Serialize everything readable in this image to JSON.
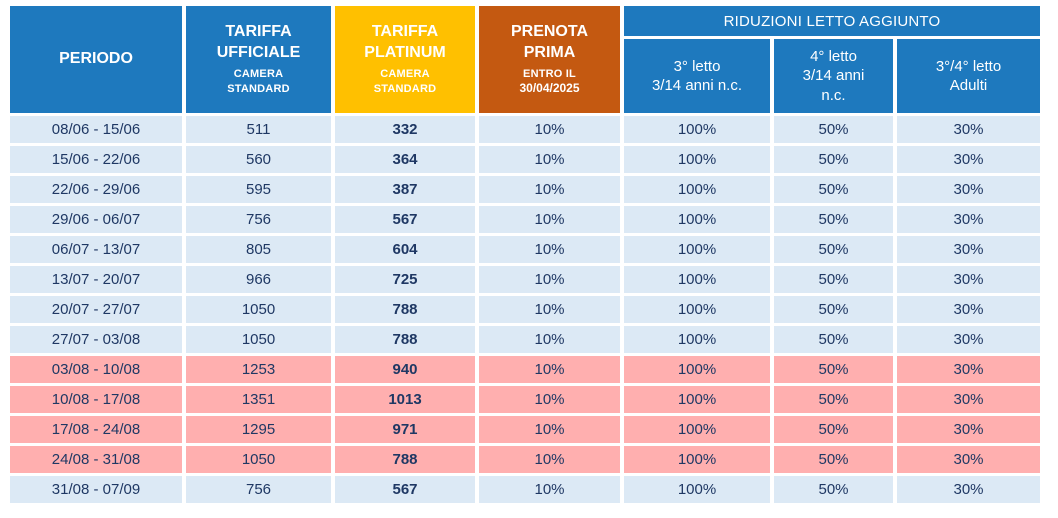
{
  "colors": {
    "header_blue": "#1E79BE",
    "header_yellow": "#FFC000",
    "header_orange": "#C45911",
    "row_low_blue": "#DCE9F5",
    "row_high_pink": "#FFAFAF",
    "text_navy": "#1F3864",
    "header_text": "#FFFFFF"
  },
  "headers": {
    "periodo": "PERIODO",
    "ufficiale": {
      "line1": "TARIFFA",
      "line2": "UFFICIALE",
      "line3": "CAMERA",
      "line4": "STANDARD"
    },
    "platinum": {
      "line1": "TARIFFA",
      "line2": "PLATINUM",
      "line3": "CAMERA",
      "line4": "STANDARD"
    },
    "prenota": {
      "line1": "PRENOTA",
      "line2": "PRIMA",
      "line3": "ENTRO IL",
      "line4": "30/04/2025"
    },
    "riduzioni": "RIDUZIONI LETTO AGGIUNTO",
    "sub3": {
      "line1": "3° letto",
      "line2": "3/14 anni n.c.",
      "line3": ""
    },
    "sub4": {
      "line1": "4° letto",
      "line2": "3/14 anni",
      "line3": "n.c."
    },
    "sub34": {
      "line1": "3°/4° letto",
      "line2": "Adulti",
      "line3": ""
    }
  },
  "rows": [
    {
      "periodo": "08/06 - 15/06",
      "ufficiale": "511",
      "platinum": "332",
      "prenota": "10%",
      "letto3": "100%",
      "letto4": "50%",
      "adulti": "30%",
      "season": "low"
    },
    {
      "periodo": "15/06 - 22/06",
      "ufficiale": "560",
      "platinum": "364",
      "prenota": "10%",
      "letto3": "100%",
      "letto4": "50%",
      "adulti": "30%",
      "season": "low"
    },
    {
      "periodo": "22/06 - 29/06",
      "ufficiale": "595",
      "platinum": "387",
      "prenota": "10%",
      "letto3": "100%",
      "letto4": "50%",
      "adulti": "30%",
      "season": "low"
    },
    {
      "periodo": "29/06 - 06/07",
      "ufficiale": "756",
      "platinum": "567",
      "prenota": "10%",
      "letto3": "100%",
      "letto4": "50%",
      "adulti": "30%",
      "season": "low"
    },
    {
      "periodo": "06/07 - 13/07",
      "ufficiale": "805",
      "platinum": "604",
      "prenota": "10%",
      "letto3": "100%",
      "letto4": "50%",
      "adulti": "30%",
      "season": "low"
    },
    {
      "periodo": "13/07 - 20/07",
      "ufficiale": "966",
      "platinum": "725",
      "prenota": "10%",
      "letto3": "100%",
      "letto4": "50%",
      "adulti": "30%",
      "season": "low"
    },
    {
      "periodo": "20/07 - 27/07",
      "ufficiale": "1050",
      "platinum": "788",
      "prenota": "10%",
      "letto3": "100%",
      "letto4": "50%",
      "adulti": "30%",
      "season": "low"
    },
    {
      "periodo": "27/07 - 03/08",
      "ufficiale": "1050",
      "platinum": "788",
      "prenota": "10%",
      "letto3": "100%",
      "letto4": "50%",
      "adulti": "30%",
      "season": "low"
    },
    {
      "periodo": "03/08 - 10/08",
      "ufficiale": "1253",
      "platinum": "940",
      "prenota": "10%",
      "letto3": "100%",
      "letto4": "50%",
      "adulti": "30%",
      "season": "high"
    },
    {
      "periodo": "10/08 - 17/08",
      "ufficiale": "1351",
      "platinum": "1013",
      "prenota": "10%",
      "letto3": "100%",
      "letto4": "50%",
      "adulti": "30%",
      "season": "high"
    },
    {
      "periodo": "17/08 - 24/08",
      "ufficiale": "1295",
      "platinum": "971",
      "prenota": "10%",
      "letto3": "100%",
      "letto4": "50%",
      "adulti": "30%",
      "season": "high"
    },
    {
      "periodo": "24/08 - 31/08",
      "ufficiale": "1050",
      "platinum": "788",
      "prenota": "10%",
      "letto3": "100%",
      "letto4": "50%",
      "adulti": "30%",
      "season": "high"
    },
    {
      "periodo": "31/08 - 07/09",
      "ufficiale": "756",
      "platinum": "567",
      "prenota": "10%",
      "letto3": "100%",
      "letto4": "50%",
      "adulti": "30%",
      "season": "low"
    }
  ]
}
